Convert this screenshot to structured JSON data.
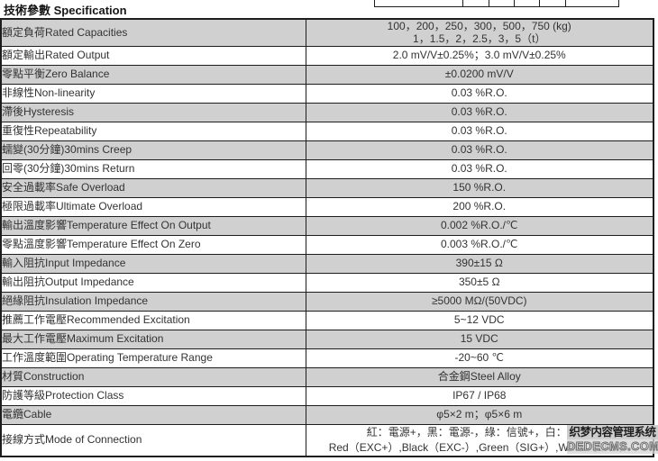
{
  "page": {
    "title": "技術參數 Specification"
  },
  "spec_table": {
    "rows": [
      {
        "label": "額定負荷Rated Capacities",
        "value_lines": [
          "100，200，250，300，500，750 (kg)",
          "1，1.5，2，2.5，3，5（t）"
        ]
      },
      {
        "label": "額定輸出Rated Output",
        "value_lines": [
          "2.0 mV/V±0.25%；3.0 mV/V±0.25%"
        ]
      },
      {
        "label": "零點平衡Zero Balance",
        "value_lines": [
          "±0.0200 mV/V"
        ]
      },
      {
        "label": "非線性Non-linearity",
        "value_lines": [
          "0.03 %R.O."
        ]
      },
      {
        "label": "滯後Hysteresis",
        "value_lines": [
          "0.03 %R.O."
        ]
      },
      {
        "label": "重復性Repeatability",
        "value_lines": [
          "0.03 %R.O."
        ]
      },
      {
        "label": "蠕變(30分鐘)30mins Creep",
        "value_lines": [
          "0.03 %R.O."
        ]
      },
      {
        "label": "回零(30分鐘)30mins Return",
        "value_lines": [
          "0.03 %R.O."
        ]
      },
      {
        "label": "安全過載率Safe Overload",
        "value_lines": [
          "150 %R.O."
        ]
      },
      {
        "label": "極限過載率Ultimate Overload",
        "value_lines": [
          "200 %R.O."
        ]
      },
      {
        "label": "輸出溫度影響Temperature Effect On Output",
        "value_lines": [
          "0.002 %R.O./℃"
        ]
      },
      {
        "label": "零點溫度影響Temperature Effect On Zero",
        "value_lines": [
          "0.003 %R.O./℃"
        ]
      },
      {
        "label": "輸入阻抗Input Impedance",
        "value_lines": [
          "390±15 Ω"
        ]
      },
      {
        "label": "輸出阻抗Output Impedance",
        "value_lines": [
          "350±5 Ω"
        ]
      },
      {
        "label": "絕緣阻抗Insulation Impedance",
        "value_lines": [
          "≥5000 MΩ/(50VDC)"
        ]
      },
      {
        "label": "推薦工作電壓Recommended Excitation",
        "value_lines": [
          "5~12 VDC"
        ]
      },
      {
        "label": "最大工作電壓Maximum Excitation",
        "value_lines": [
          "15 VDC"
        ]
      },
      {
        "label": "工作溫度範圍Operating Temperature Range",
        "value_lines": [
          "-20~60 ℃"
        ]
      },
      {
        "label": "材質Construction",
        "value_lines": [
          "合金鋼Steel Alloy"
        ]
      },
      {
        "label": "防護等級Protection Class",
        "value_lines": [
          "IP67 / IP68"
        ]
      },
      {
        "label": "電纜Cable",
        "value_lines": [
          "φ5×2 m；φ5×6 m"
        ]
      },
      {
        "label": "接線方式Mode of Connection",
        "value_lines": [
          "紅：電源+，黑：電源-，綠：信號+，白：信號-",
          "Red（EXC+）,Black（EXC-）,Green（SIG+）,White（SIG-）"
        ]
      }
    ]
  },
  "watermark": {
    "line1": "织梦内容管理系统",
    "line2": "DEDECMS.COM"
  },
  "colors": {
    "row_shaded": "#d0d0d0",
    "row_plain": "#ffffff",
    "border": "#1d1d1d",
    "text": "#333333"
  }
}
